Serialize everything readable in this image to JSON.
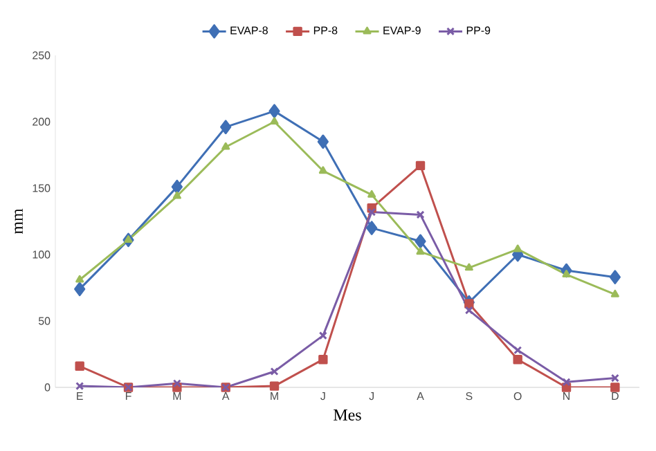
{
  "chart_data": {
    "type": "line",
    "xlabel": "Mes",
    "ylabel": "mm",
    "categories": [
      "E",
      "F",
      "M",
      "A",
      "M",
      "J",
      "J",
      "A",
      "S",
      "O",
      "N",
      "D"
    ],
    "series": [
      {
        "name": "EVAP-8",
        "color": "#3f6fb5",
        "marker": "diamond",
        "values": [
          74,
          111,
          151,
          196,
          208,
          185,
          120,
          110,
          64,
          100,
          88,
          83
        ]
      },
      {
        "name": "PP-8",
        "color": "#c0504d",
        "marker": "square",
        "values": [
          16,
          0,
          0,
          0,
          1,
          21,
          135,
          167,
          63,
          21,
          0,
          0
        ]
      },
      {
        "name": "EVAP-9",
        "color": "#9bbb59",
        "marker": "triangle",
        "values": [
          81,
          111,
          144,
          181,
          200,
          163,
          145,
          102,
          90,
          104,
          85,
          70
        ]
      },
      {
        "name": "PP-9",
        "color": "#7a5ca6",
        "marker": "cross",
        "values": [
          1,
          0,
          3,
          0,
          12,
          39,
          132,
          130,
          58,
          28,
          4,
          7
        ]
      }
    ],
    "ylim": [
      0,
      250
    ],
    "yticks": [
      0,
      50,
      100,
      150,
      200,
      250
    ],
    "grid": false,
    "legend": "top"
  }
}
